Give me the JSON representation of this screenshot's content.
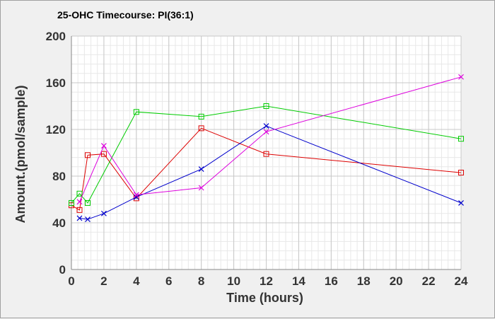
{
  "chart_data": {
    "type": "line",
    "title": "25-OHC Timecourse: PI(36:1)",
    "xlabel": "Time (hours)",
    "ylabel": "Amount.(pmol/sample)",
    "xlim": [
      0,
      24
    ],
    "ylim": [
      0,
      200
    ],
    "x_ticks": [
      0,
      2,
      4,
      6,
      8,
      10,
      12,
      14,
      16,
      18,
      20,
      22,
      24
    ],
    "y_ticks": [
      0,
      40,
      80,
      120,
      160,
      200
    ],
    "grid": true,
    "legend": "none",
    "series": [
      {
        "color": "#dd0000",
        "marker": "square",
        "x": [
          0,
          0.5,
          1,
          2,
          4,
          8,
          12,
          24
        ],
        "y": [
          55,
          51,
          98,
          99,
          61,
          121,
          99,
          83
        ]
      },
      {
        "color": "#00cc00",
        "marker": "square",
        "x": [
          0,
          0.5,
          1,
          4,
          8,
          12,
          24
        ],
        "y": [
          57,
          65,
          57,
          135,
          131,
          140,
          112
        ]
      },
      {
        "color": "#0000cc",
        "marker": "x",
        "x": [
          0.5,
          1,
          2,
          4,
          8,
          12,
          24
        ],
        "y": [
          44,
          43,
          48,
          62,
          86,
          123,
          57
        ]
      },
      {
        "color": "#dd00dd",
        "marker": "x",
        "x": [
          0.5,
          2,
          4,
          8,
          12,
          24
        ],
        "y": [
          58,
          106,
          64,
          70,
          118,
          165
        ]
      }
    ]
  }
}
